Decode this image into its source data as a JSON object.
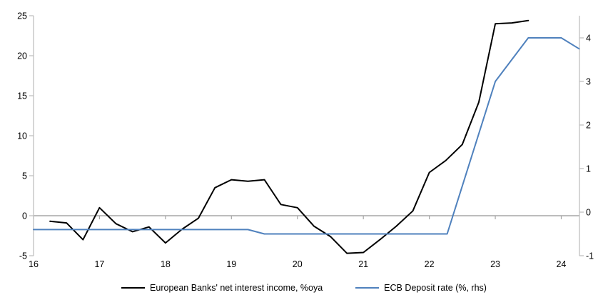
{
  "legend": {
    "series1_label": "European Banks' net interest income, %oya",
    "series2_label": "ECB Deposit rate (%, rhs)"
  },
  "colors": {
    "series1": "#000000",
    "series2": "#4F81BD",
    "zero_line": "#A6A6A6",
    "axis_line": "#BFBFBF",
    "tick_text": "#000000",
    "background": "#FFFFFF"
  },
  "chart_data": {
    "type": "line",
    "title": "",
    "xlabel": "",
    "ylabel_left": "",
    "ylabel_right": "",
    "grid": "zero-line-only",
    "legend_position": "bottom",
    "x_axis": {
      "tick_values": [
        16,
        17,
        18,
        19,
        20,
        21,
        22,
        23,
        24
      ],
      "tick_labels": [
        "16",
        "17",
        "18",
        "19",
        "20",
        "21",
        "22",
        "23",
        "24"
      ],
      "range": [
        16,
        24.28
      ]
    },
    "left_axis": {
      "tick_values": [
        25,
        20,
        15,
        10,
        5,
        0,
        -5
      ],
      "range": [
        -5,
        25
      ]
    },
    "right_axis": {
      "tick_values": [
        4,
        3,
        2,
        1,
        0,
        -1
      ],
      "range": [
        -1,
        4
      ]
    },
    "series": [
      {
        "name": "European Banks' net interest income, %oya",
        "axis": "left",
        "color": "#000000",
        "x": [
          16.25,
          16.5,
          16.75,
          17.0,
          17.25,
          17.5,
          17.75,
          18.0,
          18.25,
          18.5,
          18.75,
          19.0,
          19.25,
          19.5,
          19.75,
          20.0,
          20.25,
          20.5,
          20.75,
          21.0,
          21.25,
          21.5,
          21.75,
          22.0,
          22.25,
          22.5,
          22.75,
          23.0,
          23.25,
          23.5
        ],
        "values": [
          -0.7,
          -0.9,
          -3.0,
          1.0,
          -1.0,
          -2.0,
          -1.4,
          -3.4,
          -1.7,
          -0.3,
          3.5,
          4.5,
          4.3,
          4.5,
          1.4,
          1.0,
          -1.3,
          -2.6,
          -4.7,
          -4.6,
          -3.0,
          -1.3,
          0.6,
          5.4,
          6.9,
          8.9,
          14.2,
          24.0,
          24.1,
          24.4
        ]
      },
      {
        "name": "ECB Deposit rate (%, rhs)",
        "axis": "right",
        "color": "#4F81BD",
        "x": [
          16.0,
          19.25,
          19.5,
          22.27,
          23.0,
          23.5,
          24.0,
          24.27
        ],
        "values": [
          -0.4,
          -0.4,
          -0.5,
          -0.5,
          3.0,
          4.0,
          4.0,
          3.75
        ]
      }
    ]
  }
}
